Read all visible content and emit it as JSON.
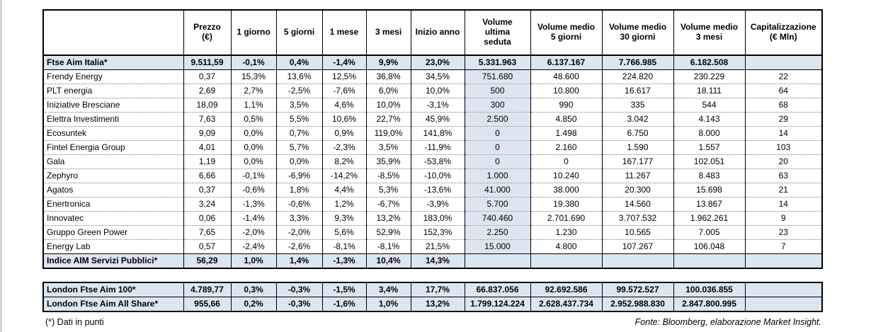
{
  "page": {
    "footnote": "(*) Dati in punti",
    "source": "Fonte: Bloomberg, elaborazione Market Insight."
  },
  "colors": {
    "highlight": "#dce6f1",
    "border": "#000000"
  },
  "main_table": {
    "headers": [
      "",
      "Prezzo\n(€)",
      "1 giorno",
      "5 giorni",
      "1 mese",
      "3 mesi",
      "Inizio anno",
      "Volume\nultima\nseduta",
      "Volume medio\n5 giorni",
      "Volume medio\n30 giorni",
      "Volume medio\n3 mesi",
      "Capitalizzazione\n(€ Mln)"
    ],
    "rows": [
      {
        "name": "Ftse Aim Italia*",
        "highlight": true,
        "cells": [
          "9.511,59",
          "-0,1%",
          "0,4%",
          "-1,4%",
          "9,9%",
          "23,0%",
          "5.331.963",
          "6.137.167",
          "7.766.985",
          "6.182.508",
          ""
        ]
      },
      {
        "name": "Frendy Energy",
        "highlight": false,
        "cells": [
          "0,37",
          "15,3%",
          "13,6%",
          "12,5%",
          "36,8%",
          "34,5%",
          "751.680",
          "48.600",
          "224.820",
          "230.229",
          "22"
        ]
      },
      {
        "name": "PLT energia",
        "highlight": false,
        "cells": [
          "2,69",
          "2,7%",
          "-2,5%",
          "-7,6%",
          "6,0%",
          "10,0%",
          "500",
          "10.800",
          "16.617",
          "18.111",
          "64"
        ]
      },
      {
        "name": "Iniziative Bresciane",
        "highlight": false,
        "cells": [
          "18,09",
          "1,1%",
          "3,5%",
          "4,6%",
          "10,0%",
          "-3,1%",
          "300",
          "990",
          "335",
          "544",
          "68"
        ]
      },
      {
        "name": "Elettra Investimenti",
        "highlight": false,
        "cells": [
          "7,63",
          "0,5%",
          "5,5%",
          "10,6%",
          "22,7%",
          "45,9%",
          "2.500",
          "4.850",
          "3.042",
          "4.143",
          "29"
        ]
      },
      {
        "name": "Ecosuntek",
        "highlight": false,
        "cells": [
          "9,09",
          "0,0%",
          "0,7%",
          "0,9%",
          "119,0%",
          "141,8%",
          "0",
          "1.498",
          "6.750",
          "8.000",
          "14"
        ]
      },
      {
        "name": "Fintel Energia Group",
        "highlight": false,
        "cells": [
          "4,01",
          "0,0%",
          "5,7%",
          "-2,3%",
          "3,5%",
          "-11,9%",
          "0",
          "2.160",
          "1.590",
          "1.557",
          "103"
        ]
      },
      {
        "name": "Gala",
        "highlight": false,
        "cells": [
          "1,19",
          "0,0%",
          "0,0%",
          "8,2%",
          "35,9%",
          "-53,8%",
          "0",
          "0",
          "167.177",
          "102.051",
          "20"
        ]
      },
      {
        "name": "Zephyro",
        "highlight": false,
        "cells": [
          "6,66",
          "-0,1%",
          "-6,9%",
          "-14,2%",
          "-8,5%",
          "-10,0%",
          "1.000",
          "10.240",
          "11.267",
          "8.483",
          "63"
        ]
      },
      {
        "name": "Agatos",
        "highlight": false,
        "cells": [
          "0,37",
          "-0,6%",
          "1,8%",
          "4,4%",
          "5,3%",
          "-13,6%",
          "41.000",
          "38.000",
          "20.300",
          "15.698",
          "21"
        ]
      },
      {
        "name": "Enertronica",
        "highlight": false,
        "cells": [
          "3,24",
          "-1,3%",
          "-0,6%",
          "1,2%",
          "-6,7%",
          "-3,9%",
          "5.700",
          "19.380",
          "14.560",
          "13.867",
          "14"
        ]
      },
      {
        "name": "Innovatec",
        "highlight": false,
        "cells": [
          "0,06",
          "-1,4%",
          "3,3%",
          "9,3%",
          "13,2%",
          "183,0%",
          "740.460",
          "2.701.690",
          "3.707.532",
          "1.962.261",
          "9"
        ]
      },
      {
        "name": "Gruppo Green Power",
        "highlight": false,
        "cells": [
          "7,65",
          "-2,0%",
          "-2,0%",
          "5,6%",
          "52,9%",
          "152,3%",
          "2.250",
          "1.230",
          "10.565",
          "7.005",
          "23"
        ]
      },
      {
        "name": "Energy Lab",
        "highlight": false,
        "cells": [
          "0,57",
          "-2,4%",
          "-2,6%",
          "-8,1%",
          "-8,1%",
          "21,5%",
          "15.000",
          "4.800",
          "107.267",
          "106.048",
          "7"
        ]
      },
      {
        "name": "Indice AIM Servizi Pubblici*",
        "highlight": true,
        "cells": [
          "56,29",
          "1,0%",
          "1,4%",
          "-1,3%",
          "10,4%",
          "14,3%",
          "",
          "",
          "",
          "",
          ""
        ]
      }
    ]
  },
  "london_table": {
    "rows": [
      {
        "name": "London Ftse Aim 100*",
        "highlight": true,
        "cells": [
          "4.789,77",
          "0,3%",
          "-0,3%",
          "-1,5%",
          "3,4%",
          "17,7%",
          "66.837.056",
          "92.692.586",
          "99.572.527",
          "100.036.855",
          ""
        ]
      },
      {
        "name": "London Ftse Aim All Share*",
        "highlight": true,
        "cells": [
          "955,66",
          "0,2%",
          "-0,3%",
          "-1,6%",
          "1,0%",
          "13,2%",
          "1.799.124.224",
          "2.628.437.734",
          "2.952.988.830",
          "2.847.800.995",
          ""
        ]
      }
    ]
  }
}
